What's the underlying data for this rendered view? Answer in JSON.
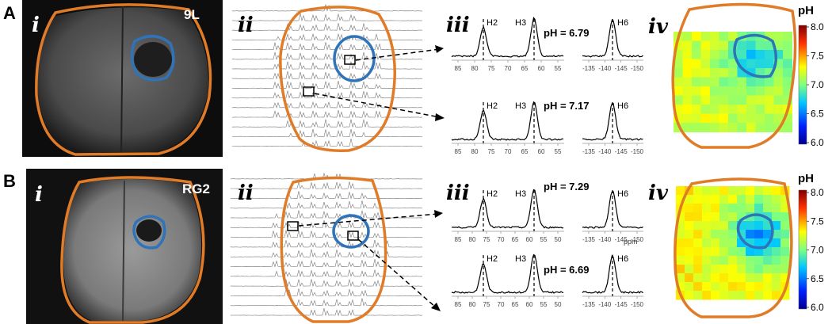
{
  "rows": [
    {
      "letter": "A",
      "panel_i": {
        "numeral": "i",
        "tumor_label": "9L"
      },
      "panel_ii": {
        "numeral": "ii"
      },
      "panel_iii": {
        "numeral": "iii",
        "spectra": [
          {
            "peak_labels": [
              "H2",
              "H3",
              "H6"
            ],
            "ph_text": "pH = 6.79",
            "left_ticks": [
              "85",
              "80",
              "75",
              "70",
              "65",
              "60",
              "55"
            ],
            "right_ticks": [
              "-135",
              "-140",
              "-145",
              "-150"
            ]
          },
          {
            "peak_labels": [
              "H2",
              "H3",
              "H6"
            ],
            "ph_text": "pH = 7.17",
            "left_ticks": [
              "85",
              "80",
              "75",
              "70",
              "65",
              "60",
              "55"
            ],
            "right_ticks": [
              "-135",
              "-140",
              "-145",
              "-150"
            ]
          }
        ]
      },
      "panel_iv": {
        "numeral": "iv"
      }
    },
    {
      "letter": "B",
      "panel_i": {
        "numeral": "i",
        "tumor_label": "RG2"
      },
      "panel_ii": {
        "numeral": "ii"
      },
      "panel_iii": {
        "numeral": "iii",
        "ppm_label": "ppm",
        "spectra": [
          {
            "peak_labels": [
              "H2",
              "H3",
              "H6"
            ],
            "ph_text": "pH = 7.29",
            "left_ticks": [
              "85",
              "80",
              "75",
              "70",
              "65",
              "60",
              "55",
              "50"
            ],
            "right_ticks": [
              "-135",
              "-140",
              "-145",
              "-150"
            ]
          },
          {
            "peak_labels": [
              "H2",
              "H3",
              "H6"
            ],
            "ph_text": "pH = 6.69",
            "left_ticks": [
              "85",
              "80",
              "75",
              "70",
              "65",
              "60",
              "55",
              "50"
            ],
            "right_ticks": [
              "-135",
              "-140",
              "-145",
              "-150"
            ]
          }
        ]
      },
      "panel_iv": {
        "numeral": "iv"
      }
    }
  ],
  "colorbar": {
    "title": "pH",
    "ticks": [
      "8.0",
      "7.5",
      "7.0",
      "6.5",
      "6.0"
    ]
  },
  "colors": {
    "brain_outline": "#e07b28",
    "tumor_outline": "#2f73b8"
  }
}
